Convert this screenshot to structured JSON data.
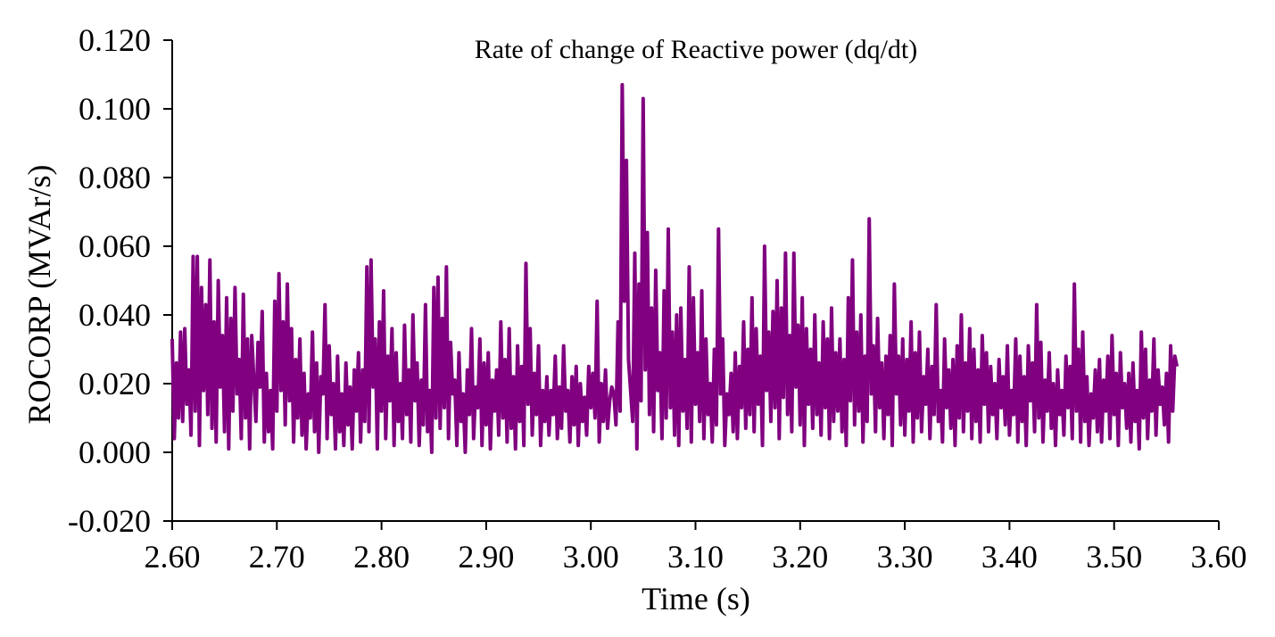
{
  "chart_data": {
    "type": "line",
    "title": "Rate of change of Reactive power (dq/dt)",
    "xlabel": "Time (s)",
    "ylabel": "ROCORP (MVAr/s)",
    "xlim": [
      2.6,
      3.6
    ],
    "ylim": [
      -0.02,
      0.12
    ],
    "x_ticks": [
      "2.60",
      "2.70",
      "2.80",
      "2.90",
      "3.00",
      "3.10",
      "3.20",
      "3.30",
      "3.40",
      "3.50",
      "3.60"
    ],
    "y_ticks": [
      "-0.020",
      "0.000",
      "0.020",
      "0.040",
      "0.060",
      "0.080",
      "0.100",
      "0.120"
    ],
    "grid": false,
    "legend": "none",
    "series": [
      {
        "name": "ROCORP",
        "color": "#800080",
        "x_start": 2.6,
        "x_step": 0.002,
        "values": [
          0.033,
          0.004,
          0.026,
          0.01,
          0.035,
          0.009,
          0.036,
          0.014,
          0.024,
          0.005,
          0.057,
          0.012,
          0.057,
          0.002,
          0.048,
          0.018,
          0.043,
          0.011,
          0.056,
          0.007,
          0.038,
          0.003,
          0.05,
          0.019,
          0.034,
          0.006,
          0.045,
          0.001,
          0.039,
          0.012,
          0.048,
          0.017,
          0.027,
          0.004,
          0.046,
          0.01,
          0.033,
          0.001,
          0.034,
          0.021,
          0.009,
          0.032,
          0.019,
          0.041,
          0.003,
          0.023,
          0.006,
          0.018,
          0.001,
          0.044,
          0.012,
          0.052,
          0.018,
          0.038,
          0.008,
          0.049,
          0.015,
          0.036,
          0.003,
          0.027,
          0.01,
          0.033,
          0.005,
          0.023,
          0.001,
          0.017,
          0.01,
          0.035,
          0.006,
          0.026,
          0.0,
          0.022,
          0.017,
          0.043,
          0.004,
          0.031,
          0.011,
          0.02,
          0.001,
          0.028,
          0.006,
          0.017,
          0.002,
          0.026,
          0.008,
          0.019,
          0.001,
          0.024,
          0.012,
          0.029,
          0.003,
          0.024,
          0.009,
          0.054,
          0.006,
          0.056,
          0.019,
          0.033,
          0.001,
          0.038,
          0.012,
          0.047,
          0.004,
          0.028,
          0.015,
          0.036,
          0.002,
          0.029,
          0.009,
          0.02,
          0.004,
          0.037,
          0.011,
          0.024,
          0.003,
          0.04,
          0.015,
          0.026,
          0.002,
          0.021,
          0.008,
          0.043,
          0.006,
          0.018,
          0.0,
          0.048,
          0.01,
          0.051,
          0.007,
          0.039,
          0.013,
          0.054,
          0.004,
          0.032,
          0.017,
          0.021,
          0.002,
          0.029,
          0.009,
          0.017,
          0.0,
          0.024,
          0.011,
          0.036,
          0.004,
          0.019,
          0.013,
          0.033,
          0.002,
          0.026,
          0.008,
          0.029,
          0.001,
          0.021,
          0.012,
          0.024,
          0.005,
          0.038,
          0.01,
          0.027,
          0.003,
          0.036,
          0.007,
          0.022,
          0.001,
          0.031,
          0.009,
          0.025,
          0.002,
          0.055,
          0.014,
          0.036,
          0.005,
          0.023,
          0.011,
          0.031,
          0.002,
          0.018,
          0.009,
          0.022,
          0.005,
          0.018,
          0.011,
          0.028,
          0.004,
          0.019,
          0.007,
          0.031,
          0.012,
          0.018,
          0.003,
          0.022,
          0.008,
          0.025,
          0.002,
          0.02,
          0.009,
          0.016,
          0.005,
          0.025,
          0.013,
          0.023,
          0.01,
          0.044,
          0.003,
          0.02,
          0.009,
          0.024,
          0.007,
          0.015,
          0.019,
          0.017,
          0.008,
          0.038,
          0.012,
          0.107,
          0.044,
          0.085,
          0.027,
          0.018,
          0.009,
          0.058,
          0.001,
          0.049,
          0.015,
          0.103,
          0.024,
          0.064,
          0.011,
          0.042,
          0.006,
          0.053,
          0.018,
          0.029,
          0.004,
          0.047,
          0.01,
          0.065,
          0.013,
          0.035,
          0.005,
          0.04,
          0.002,
          0.042,
          0.012,
          0.027,
          0.007,
          0.054,
          0.003,
          0.045,
          0.014,
          0.029,
          0.009,
          0.047,
          0.004,
          0.033,
          0.011,
          0.02,
          0.003,
          0.03,
          0.008,
          0.065,
          0.017,
          0.033,
          0.002,
          0.017,
          0.011,
          0.023,
          0.006,
          0.029,
          0.004,
          0.025,
          0.013,
          0.038,
          0.007,
          0.03,
          0.011,
          0.045,
          0.006,
          0.036,
          0.014,
          0.028,
          0.002,
          0.06,
          0.018,
          0.035,
          0.009,
          0.041,
          0.013,
          0.05,
          0.004,
          0.042,
          0.016,
          0.058,
          0.011,
          0.034,
          0.006,
          0.058,
          0.019,
          0.037,
          0.008,
          0.045,
          0.002,
          0.036,
          0.014,
          0.03,
          0.007,
          0.04,
          0.011,
          0.026,
          0.005,
          0.038,
          0.013,
          0.033,
          0.004,
          0.042,
          0.009,
          0.029,
          0.012,
          0.033,
          0.006,
          0.027,
          0.002,
          0.045,
          0.015,
          0.056,
          0.008,
          0.035,
          0.012,
          0.04,
          0.003,
          0.028,
          0.009,
          0.068,
          0.017,
          0.031,
          0.006,
          0.039,
          0.013,
          0.026,
          0.004,
          0.028,
          0.011,
          0.034,
          0.002,
          0.049,
          0.017,
          0.028,
          0.008,
          0.033,
          0.005,
          0.027,
          0.012,
          0.038,
          0.003,
          0.029,
          0.01,
          0.035,
          0.006,
          0.022,
          0.014,
          0.03,
          0.004,
          0.025,
          0.011,
          0.043,
          0.009,
          0.018,
          0.003,
          0.033,
          0.013,
          0.024,
          0.007,
          0.027,
          0.002,
          0.031,
          0.01,
          0.04,
          0.006,
          0.026,
          0.012,
          0.036,
          0.004,
          0.03,
          0.009,
          0.024,
          0.003,
          0.034,
          0.014,
          0.029,
          0.006,
          0.025,
          0.011,
          0.02,
          0.004,
          0.027,
          0.013,
          0.022,
          0.008,
          0.031,
          0.005,
          0.018,
          0.011,
          0.033,
          0.003,
          0.028,
          0.009,
          0.022,
          0.002,
          0.031,
          0.015,
          0.026,
          0.006,
          0.043,
          0.01,
          0.032,
          0.003,
          0.021,
          0.012,
          0.029,
          0.007,
          0.02,
          0.002,
          0.024,
          0.011,
          0.018,
          0.005,
          0.028,
          0.013,
          0.025,
          0.004,
          0.049,
          0.012,
          0.03,
          0.003,
          0.035,
          0.009,
          0.022,
          0.002,
          0.017,
          0.01,
          0.024,
          0.006,
          0.027,
          0.003,
          0.021,
          0.012,
          0.028,
          0.004,
          0.034,
          0.011,
          0.023,
          0.002,
          0.029,
          0.013,
          0.02,
          0.007,
          0.023,
          0.003,
          0.026,
          0.009,
          0.018,
          0.001,
          0.035,
          0.01,
          0.03,
          0.004,
          0.021,
          0.012,
          0.033,
          0.005,
          0.024,
          0.014,
          0.019,
          0.008,
          0.023,
          0.003,
          0.031,
          0.012,
          0.028,
          0.025
        ]
      }
    ]
  }
}
